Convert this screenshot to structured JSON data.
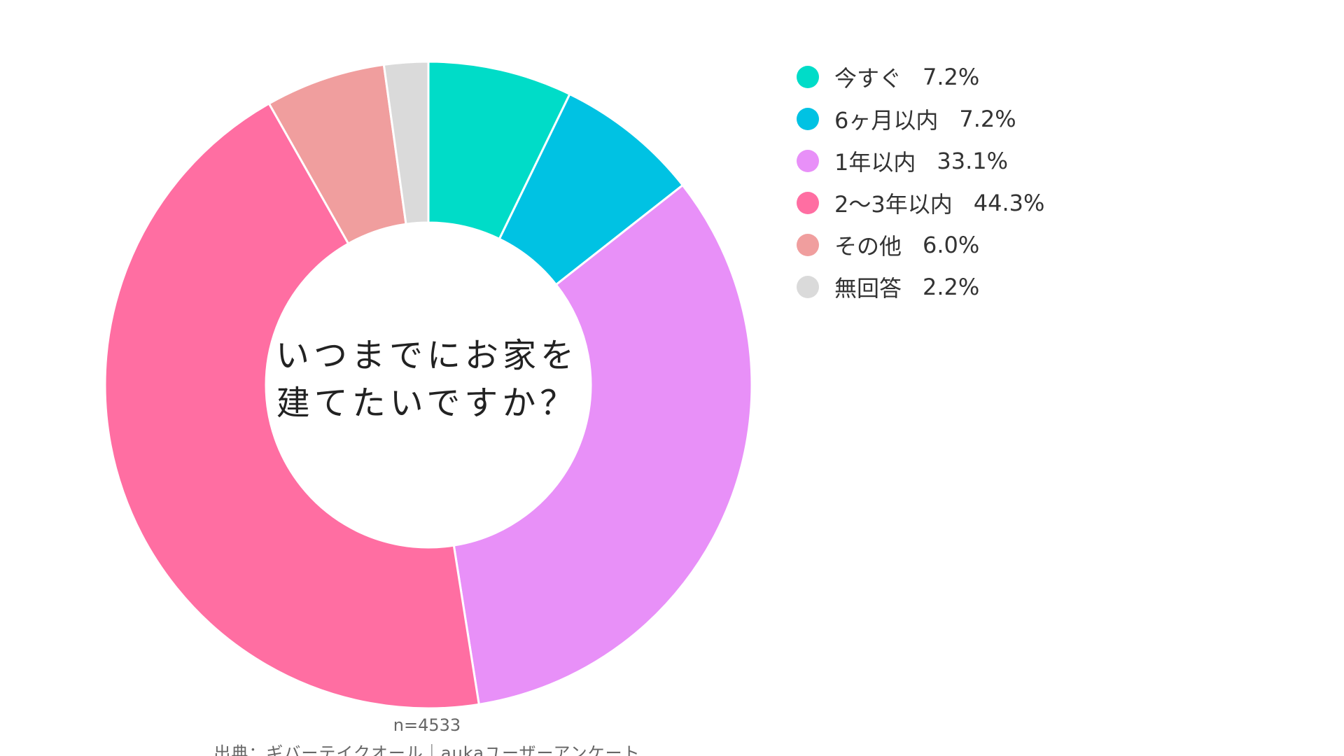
{
  "chart_data": {
    "type": "pie",
    "title": "いつまでにお家を建てたいですか？",
    "center_lines": [
      "いつまでにお家を",
      "建てたいですか？"
    ],
    "categories": [
      "今すぐ",
      "6ヶ月以内",
      "1年以内",
      "2〜3年以内",
      "その他",
      "無回答"
    ],
    "values": [
      7.2,
      7.2,
      33.1,
      44.3,
      6.0,
      2.2
    ],
    "value_labels": [
      "7.2%",
      "7.2%",
      "33.1%",
      "44.3%",
      "6.0%",
      "2.2%"
    ],
    "colors": [
      "#00DCC8",
      "#00C2E3",
      "#E890F8",
      "#FF6EA2",
      "#F09E9E",
      "#DADADA"
    ],
    "hole": "donut",
    "legend_position": "right"
  },
  "footer": {
    "n": "n=4533",
    "source": "出典：ギバーテイクオール｜aukaユーザーアンケート"
  }
}
